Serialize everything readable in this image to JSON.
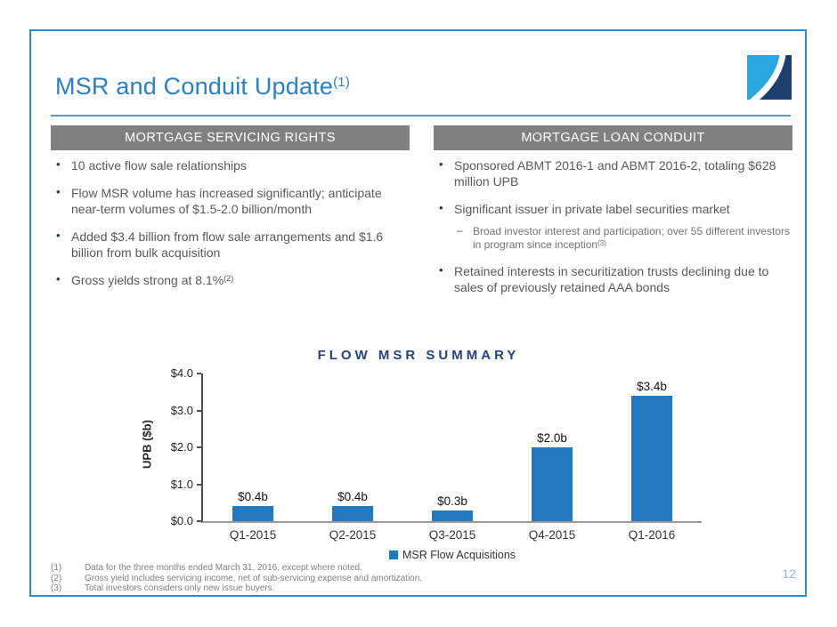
{
  "slide": {
    "title": "MSR and Conduit Update",
    "title_sup": "(1)",
    "page_number": "12",
    "colors": {
      "title_blue": "#2980c4",
      "border_blue": "#3388cb",
      "header_gray": "#808080",
      "bullet_navy": "#1f3864",
      "body_gray": "#595959",
      "bar_blue": "#2478bd",
      "logo_light_blue": "#29a8e0",
      "logo_navy": "#1c3e6e"
    }
  },
  "left_panel": {
    "header": "MORTGAGE SERVICING RIGHTS",
    "bullets": [
      {
        "text": "10 active flow sale relationships"
      },
      {
        "text": "Flow MSR volume has increased significantly; anticipate near-term volumes of $1.5-2.0 billion/month"
      },
      {
        "text": "Added $3.4 billion from flow sale arrangements and $1.6 billion from bulk acquisition"
      },
      {
        "text": "Gross yields strong at 8.1%",
        "sup": "(2)"
      }
    ]
  },
  "right_panel": {
    "header": "MORTGAGE LOAN CONDUIT",
    "bullets": [
      {
        "text": "Sponsored ABMT 2016-1 and ABMT 2016-2, totaling $628 million UPB"
      },
      {
        "text": "Significant issuer in private label securities market",
        "sub_bullets": [
          {
            "text": "Broad investor interest and participation; over 55 different investors in program since inception",
            "sup": "(3)"
          }
        ]
      },
      {
        "text": "Retained interests in securitization trusts declining due to sales of previously retained AAA bonds"
      }
    ]
  },
  "chart_data": {
    "type": "bar",
    "title": "FLOW MSR SUMMARY",
    "xlabel": "",
    "ylabel": "UPB ($b)",
    "categories": [
      "Q1-2015",
      "Q2-2015",
      "Q3-2015",
      "Q4-2015",
      "Q1-2016"
    ],
    "values": [
      0.4,
      0.4,
      0.3,
      2.0,
      3.4
    ],
    "data_labels": [
      "$0.4b",
      "$0.4b",
      "$0.3b",
      "$2.0b",
      "$3.4b"
    ],
    "y_ticks": [
      "$4.0",
      "$3.0",
      "$2.0",
      "$1.0",
      "$0.0"
    ],
    "ylim": [
      0,
      4.0
    ],
    "grid": false,
    "legend": [
      "MSR Flow Acquisitions"
    ],
    "legend_position": "bottom",
    "bar_color": "#2478bd"
  },
  "footnotes": [
    {
      "marker": "(1)",
      "text": "Data for the three months ended March 31, 2016, except where noted."
    },
    {
      "marker": "(2)",
      "text": "Gross yield includes servicing income, net of sub-servicing expense and amortization."
    },
    {
      "marker": "(3)",
      "text": "Total investors considers only new issue buyers."
    }
  ]
}
